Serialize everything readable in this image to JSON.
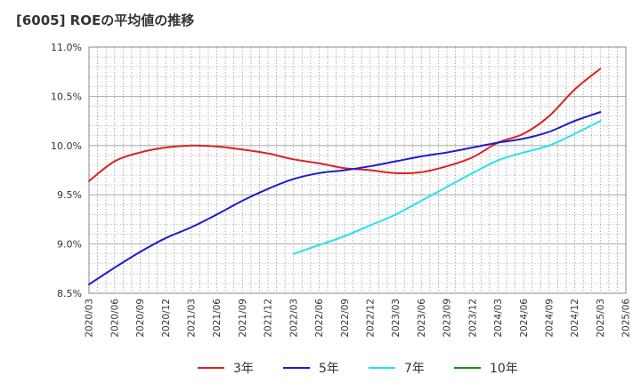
{
  "chart_data": {
    "type": "line",
    "title": "[6005]  ROEの平均値の推移",
    "xlabel": "",
    "ylabel": "",
    "ylim": [
      8.5,
      11.0
    ],
    "grid": true,
    "yticks": [
      "8.5%",
      "9.0%",
      "9.5%",
      "10.0%",
      "10.5%",
      "11.0%"
    ],
    "ytick_values": [
      8.5,
      9.0,
      9.5,
      10.0,
      10.5,
      11.0
    ],
    "categories": [
      "2020/03",
      "2020/06",
      "2020/09",
      "2020/12",
      "2021/03",
      "2021/06",
      "2021/09",
      "2021/12",
      "2022/03",
      "2022/06",
      "2022/09",
      "2022/12",
      "2023/03",
      "2023/06",
      "2023/09",
      "2023/12",
      "2024/03",
      "2024/06",
      "2024/09",
      "2024/12",
      "2025/03",
      "2025/06"
    ],
    "series": [
      {
        "name": "3年",
        "color": "#dd2222",
        "values": [
          9.64,
          9.84,
          9.93,
          9.98,
          10.0,
          9.99,
          9.96,
          9.92,
          9.86,
          9.82,
          9.77,
          9.75,
          9.72,
          9.73,
          9.79,
          9.88,
          10.03,
          10.12,
          10.3,
          10.57,
          10.78,
          null
        ]
      },
      {
        "name": "5年",
        "color": "#1c1ccc",
        "values": [
          8.59,
          8.76,
          8.92,
          9.06,
          9.17,
          9.3,
          9.44,
          9.56,
          9.66,
          9.72,
          9.75,
          9.79,
          9.84,
          9.89,
          9.93,
          9.98,
          10.03,
          10.07,
          10.14,
          10.25,
          10.34,
          null
        ]
      },
      {
        "name": "7年",
        "color": "#22e5ee",
        "values": [
          null,
          null,
          null,
          null,
          null,
          null,
          null,
          null,
          8.9,
          8.99,
          9.08,
          9.19,
          9.3,
          9.44,
          9.58,
          9.72,
          9.85,
          9.93,
          10.0,
          10.12,
          10.25,
          null
        ]
      },
      {
        "name": "10年",
        "color": "#1a8a1a",
        "values": [
          null,
          null,
          null,
          null,
          null,
          null,
          null,
          null,
          null,
          null,
          null,
          null,
          null,
          null,
          null,
          null,
          null,
          null,
          null,
          null,
          null,
          null
        ]
      }
    ]
  }
}
